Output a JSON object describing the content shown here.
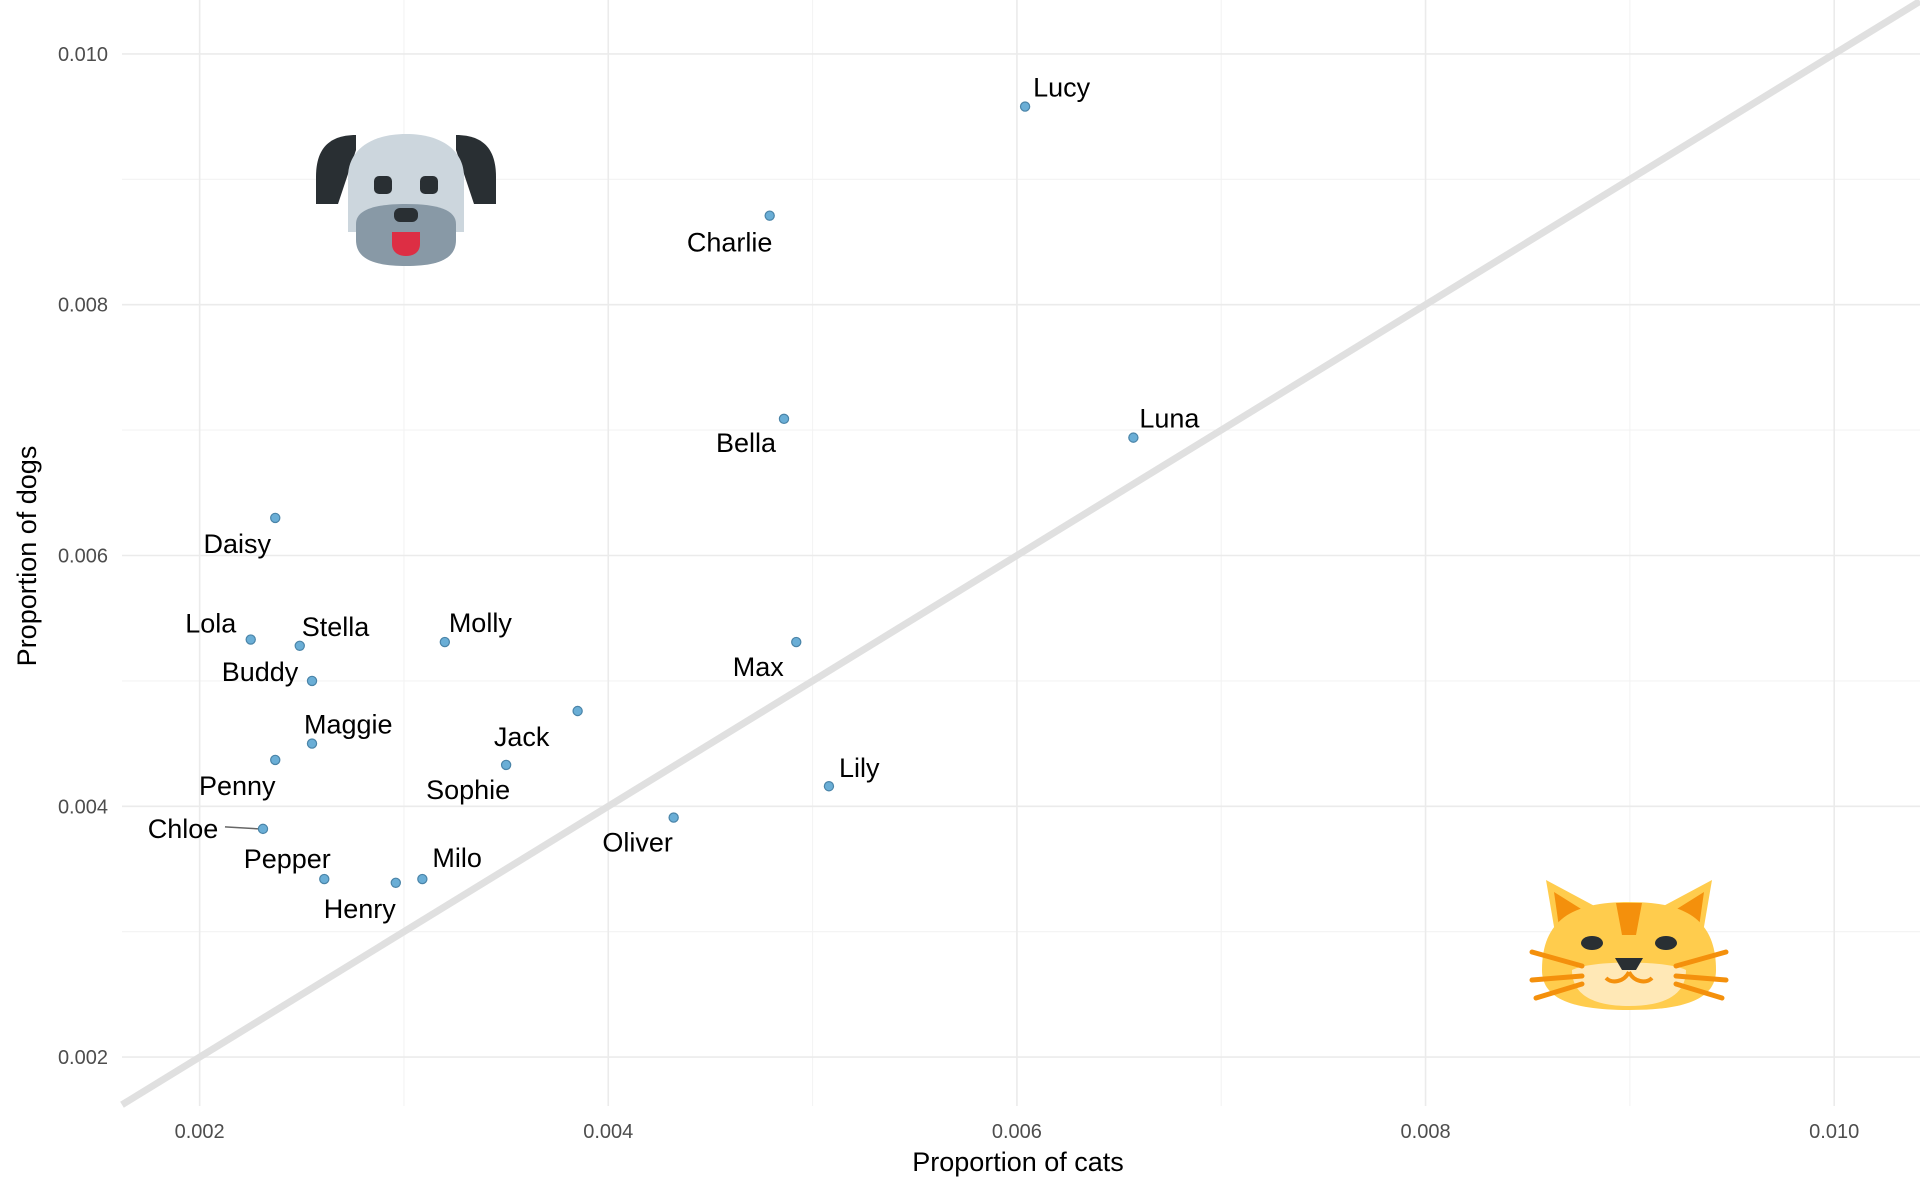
{
  "chart_data": {
    "type": "scatter",
    "title": "",
    "xlabel": "Proportion of cats",
    "ylabel": "Proportion of dogs",
    "xlim": [
      0.00162,
      0.01042
    ],
    "ylim": [
      0.00161,
      0.01043
    ],
    "x_ticks": [
      "0.002",
      "0.004",
      "0.006",
      "0.008",
      "0.010"
    ],
    "y_ticks": [
      "0.002",
      "0.004",
      "0.006",
      "0.008",
      "0.010"
    ],
    "grid": true,
    "reference_line": "y = x",
    "icons": {
      "dog": "dog-face-icon",
      "cat": "cat-face-icon"
    },
    "colors": {
      "point_fill": "#6aaed6",
      "point_stroke": "#4a84a8",
      "reference_line": "#e0e0e0",
      "dog_fur": "#ccd6dd",
      "cat_fur": "#ffcc4d"
    },
    "points": [
      {
        "name": "Lucy",
        "x": 0.00604,
        "y": 0.00958
      },
      {
        "name": "Charlie",
        "x": 0.00479,
        "y": 0.00871
      },
      {
        "name": "Bella",
        "x": 0.00486,
        "y": 0.00709
      },
      {
        "name": "Luna",
        "x": 0.00657,
        "y": 0.00694
      },
      {
        "name": "Daisy",
        "x": 0.00237,
        "y": 0.0063
      },
      {
        "name": "Lola",
        "x": 0.00225,
        "y": 0.00533
      },
      {
        "name": "Stella",
        "x": 0.00249,
        "y": 0.00528
      },
      {
        "name": "Molly",
        "x": 0.0032,
        "y": 0.00531
      },
      {
        "name": "Max",
        "x": 0.00492,
        "y": 0.00531
      },
      {
        "name": "Buddy",
        "x": 0.00255,
        "y": 0.005
      },
      {
        "name": "Jack",
        "x": 0.00385,
        "y": 0.00476
      },
      {
        "name": "Maggie",
        "x": 0.00255,
        "y": 0.0045
      },
      {
        "name": "Penny",
        "x": 0.00237,
        "y": 0.00437
      },
      {
        "name": "Sophie",
        "x": 0.0035,
        "y": 0.00433
      },
      {
        "name": "Lily",
        "x": 0.00508,
        "y": 0.00416
      },
      {
        "name": "Oliver",
        "x": 0.00432,
        "y": 0.00391
      },
      {
        "name": "Chloe",
        "x": 0.00231,
        "y": 0.00382
      },
      {
        "name": "Pepper",
        "x": 0.00261,
        "y": 0.00342
      },
      {
        "name": "Milo",
        "x": 0.00309,
        "y": 0.00342
      },
      {
        "name": "Henry",
        "x": 0.00296,
        "y": 0.00339
      }
    ]
  }
}
